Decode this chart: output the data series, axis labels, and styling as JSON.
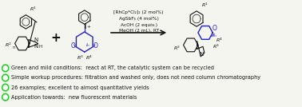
{
  "background_color": "#f5f5f0",
  "bullet_points": [
    "Green and mild conditions:  react at RT, the catalytic system can be recycled",
    "Simple workup procedures: filtration and washed only, does not need column chromatography",
    "26 examples; excellent to almost quantitative yields",
    "Application towards:  new fluorescent materials"
  ],
  "bullet_color": "#22cc22",
  "text_color": "#111111",
  "reaction_line1": "[RhCp*Cl₂]₂ (2 mol%)",
  "reaction_line2": "AgSbF₆ (4 mol%)",
  "reaction_line3": "AcOH (2 equiv.)",
  "reaction_line4": "MeOH (2 mL), RT",
  "blue": "#2222cc",
  "black": "#111111",
  "gray": "#555555",
  "fig_width": 3.78,
  "fig_height": 1.34,
  "dpi": 100
}
